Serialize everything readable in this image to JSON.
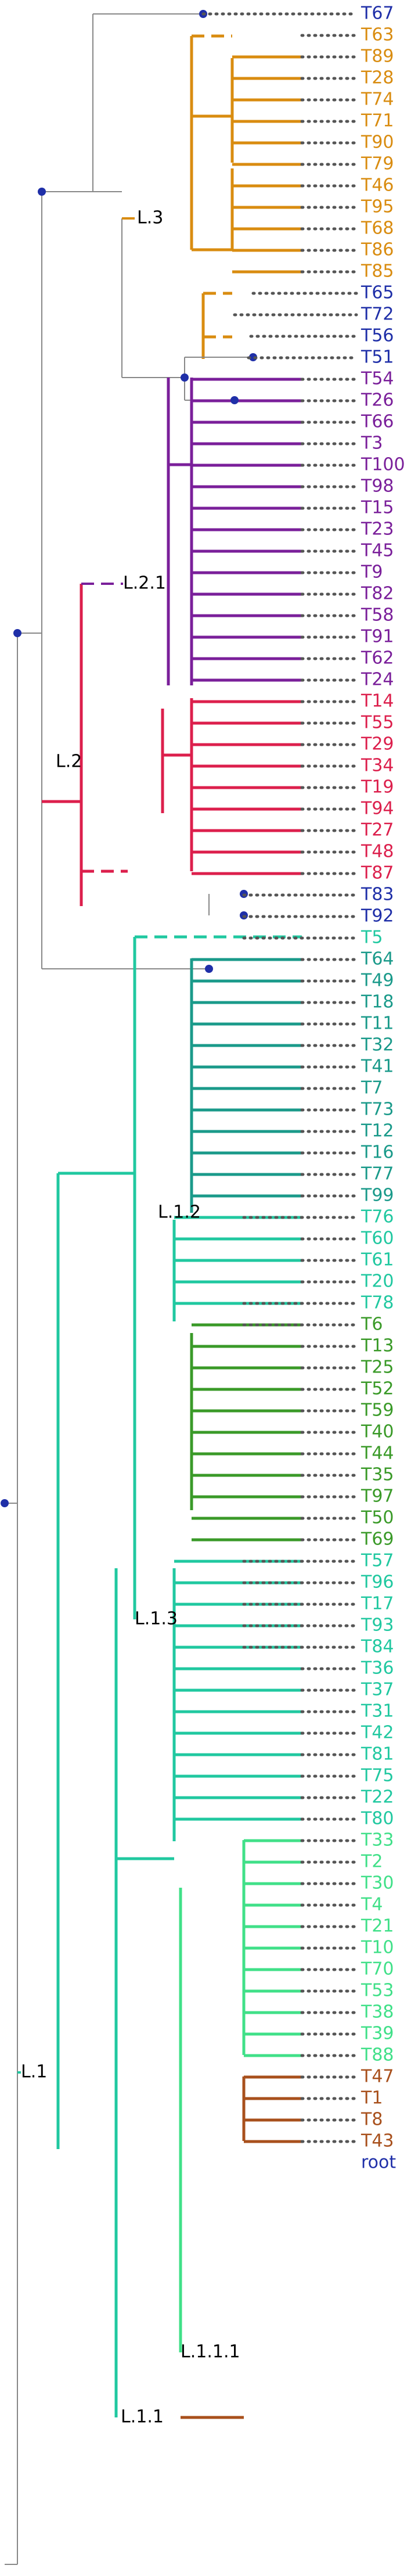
{
  "colors": {
    "root": "#1f2fa8",
    "L3": "#d98c10",
    "L21": "#7a1f9a",
    "L2": "#dc1f4c",
    "L112": "#1a9a8a",
    "L11x": "#20c8a0",
    "L113": "#3a9a28",
    "L1111": "#40e088",
    "L111": "#a8501c",
    "dot": "#555555",
    "node": "#1f2fa8",
    "neutral": "#888888"
  },
  "clades": [
    {
      "name": "L.3",
      "color": "L3"
    },
    {
      "name": "L.2.1",
      "color": "L21"
    },
    {
      "name": "L.2",
      "color": "L2"
    },
    {
      "name": "L.1.2",
      "color": "L112"
    },
    {
      "name": "L.1.3",
      "color": "L113"
    },
    {
      "name": "L.1",
      "color": "L11x"
    },
    {
      "name": "L.1.1.1",
      "color": "L1111"
    },
    {
      "name": "L.1.1",
      "color": "L111"
    }
  ],
  "tips": [
    {
      "label": "T67",
      "color": "root"
    },
    {
      "label": "T63",
      "color": "L3"
    },
    {
      "label": "T89",
      "color": "L3"
    },
    {
      "label": "T28",
      "color": "L3"
    },
    {
      "label": "T74",
      "color": "L3"
    },
    {
      "label": "T71",
      "color": "L3"
    },
    {
      "label": "T90",
      "color": "L3"
    },
    {
      "label": "T79",
      "color": "L3"
    },
    {
      "label": "T46",
      "color": "L3"
    },
    {
      "label": "T95",
      "color": "L3"
    },
    {
      "label": "T68",
      "color": "L3"
    },
    {
      "label": "T86",
      "color": "L3"
    },
    {
      "label": "T85",
      "color": "L3"
    },
    {
      "label": "T65",
      "color": "root"
    },
    {
      "label": "T72",
      "color": "root"
    },
    {
      "label": "T56",
      "color": "root"
    },
    {
      "label": "T51",
      "color": "root"
    },
    {
      "label": "T54",
      "color": "L21"
    },
    {
      "label": "T26",
      "color": "L21"
    },
    {
      "label": "T66",
      "color": "L21"
    },
    {
      "label": "T3",
      "color": "L21"
    },
    {
      "label": "T100",
      "color": "L21"
    },
    {
      "label": "T98",
      "color": "L21"
    },
    {
      "label": "T15",
      "color": "L21"
    },
    {
      "label": "T23",
      "color": "L21"
    },
    {
      "label": "T45",
      "color": "L21"
    },
    {
      "label": "T9",
      "color": "L21"
    },
    {
      "label": "T82",
      "color": "L21"
    },
    {
      "label": "T58",
      "color": "L21"
    },
    {
      "label": "T91",
      "color": "L21"
    },
    {
      "label": "T62",
      "color": "L21"
    },
    {
      "label": "T24",
      "color": "L21"
    },
    {
      "label": "T14",
      "color": "L2"
    },
    {
      "label": "T55",
      "color": "L2"
    },
    {
      "label": "T29",
      "color": "L2"
    },
    {
      "label": "T34",
      "color": "L2"
    },
    {
      "label": "T19",
      "color": "L2"
    },
    {
      "label": "T94",
      "color": "L2"
    },
    {
      "label": "T27",
      "color": "L2"
    },
    {
      "label": "T48",
      "color": "L2"
    },
    {
      "label": "T87",
      "color": "L2"
    },
    {
      "label": "T83",
      "color": "root"
    },
    {
      "label": "T92",
      "color": "root"
    },
    {
      "label": "T5",
      "color": "L11x"
    },
    {
      "label": "T64",
      "color": "L112"
    },
    {
      "label": "T49",
      "color": "L112"
    },
    {
      "label": "T18",
      "color": "L112"
    },
    {
      "label": "T11",
      "color": "L112"
    },
    {
      "label": "T32",
      "color": "L112"
    },
    {
      "label": "T41",
      "color": "L112"
    },
    {
      "label": "T7",
      "color": "L112"
    },
    {
      "label": "T73",
      "color": "L112"
    },
    {
      "label": "T12",
      "color": "L112"
    },
    {
      "label": "T16",
      "color": "L112"
    },
    {
      "label": "T77",
      "color": "L112"
    },
    {
      "label": "T99",
      "color": "L112"
    },
    {
      "label": "T76",
      "color": "L11x"
    },
    {
      "label": "T60",
      "color": "L11x"
    },
    {
      "label": "T61",
      "color": "L11x"
    },
    {
      "label": "T20",
      "color": "L11x"
    },
    {
      "label": "T78",
      "color": "L11x"
    },
    {
      "label": "T6",
      "color": "L113"
    },
    {
      "label": "T13",
      "color": "L113"
    },
    {
      "label": "T25",
      "color": "L113"
    },
    {
      "label": "T52",
      "color": "L113"
    },
    {
      "label": "T59",
      "color": "L113"
    },
    {
      "label": "T40",
      "color": "L113"
    },
    {
      "label": "T44",
      "color": "L113"
    },
    {
      "label": "T35",
      "color": "L113"
    },
    {
      "label": "T97",
      "color": "L113"
    },
    {
      "label": "T50",
      "color": "L113"
    },
    {
      "label": "T69",
      "color": "L113"
    },
    {
      "label": "T57",
      "color": "L11x"
    },
    {
      "label": "T96",
      "color": "L11x"
    },
    {
      "label": "T17",
      "color": "L11x"
    },
    {
      "label": "T93",
      "color": "L11x"
    },
    {
      "label": "T84",
      "color": "L11x"
    },
    {
      "label": "T36",
      "color": "L11x"
    },
    {
      "label": "T37",
      "color": "L11x"
    },
    {
      "label": "T31",
      "color": "L11x"
    },
    {
      "label": "T42",
      "color": "L11x"
    },
    {
      "label": "T81",
      "color": "L11x"
    },
    {
      "label": "T75",
      "color": "L11x"
    },
    {
      "label": "T22",
      "color": "L11x"
    },
    {
      "label": "T80",
      "color": "L11x"
    },
    {
      "label": "T33",
      "color": "L1111"
    },
    {
      "label": "T2",
      "color": "L1111"
    },
    {
      "label": "T30",
      "color": "L1111"
    },
    {
      "label": "T4",
      "color": "L1111"
    },
    {
      "label": "T21",
      "color": "L1111"
    },
    {
      "label": "T10",
      "color": "L1111"
    },
    {
      "label": "T70",
      "color": "L1111"
    },
    {
      "label": "T53",
      "color": "L1111"
    },
    {
      "label": "T38",
      "color": "L1111"
    },
    {
      "label": "T39",
      "color": "L1111"
    },
    {
      "label": "T88",
      "color": "L1111"
    },
    {
      "label": "T47",
      "color": "L111"
    },
    {
      "label": "T1",
      "color": "L111"
    },
    {
      "label": "T8",
      "color": "L111"
    },
    {
      "label": "T43",
      "color": "L111"
    },
    {
      "label": "root",
      "color": "root"
    }
  ]
}
